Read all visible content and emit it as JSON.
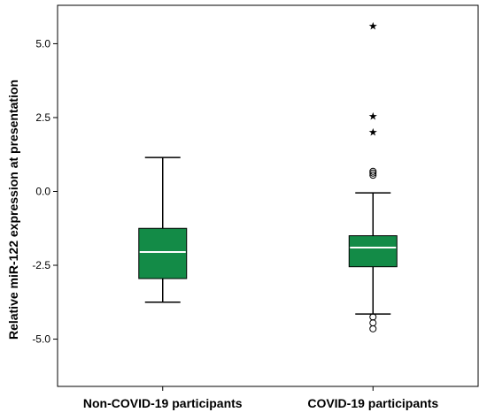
{
  "chart_data": {
    "type": "boxplot",
    "ylabel": "Relative miR-122 expression at presentation",
    "ylim": [
      -6.6,
      6.3
    ],
    "yticks": [
      "5.0",
      "2.5",
      "0.0",
      "-2.5",
      "-5.0"
    ],
    "grid": false,
    "box_fill_color": "#138b47",
    "median_color": "#ffffff",
    "categories": [
      "Non-COVID-19 participants",
      "COVID-19 participants"
    ],
    "series": [
      {
        "whisker_low": -3.75,
        "q1": -2.95,
        "median": -2.05,
        "q3": -1.25,
        "whisker_high": 1.15,
        "outliers_circle": [],
        "outliers_star": []
      },
      {
        "whisker_low": -4.15,
        "q1": -2.55,
        "median": -1.9,
        "q3": -1.5,
        "whisker_high": -0.05,
        "outliers_circle": [
          0.55,
          0.62,
          0.68,
          -4.25,
          -4.45,
          -4.65
        ],
        "outliers_star": [
          5.6,
          2.55,
          2.0
        ]
      }
    ]
  }
}
